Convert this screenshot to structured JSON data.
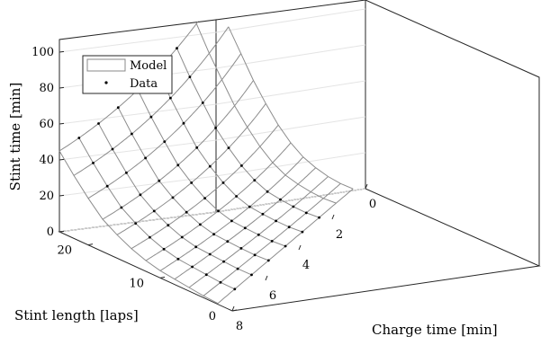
{
  "chart_data": {
    "type": "surface3d",
    "zlabel": "Stint time [min]",
    "ylabel": "Stint length [laps]",
    "xlabel": "Charge time [min]",
    "x_ticks": [
      "0",
      "2",
      "4",
      "6",
      "8"
    ],
    "y_ticks": [
      "0",
      "10",
      "20"
    ],
    "z_ticks": [
      "0",
      "20",
      "40",
      "60",
      "80",
      "100"
    ],
    "xlim": [
      0,
      8
    ],
    "ylim": [
      0,
      24
    ],
    "zlim": [
      0,
      110
    ],
    "legend": {
      "placement": "top-left",
      "entries": [
        {
          "label": "Model",
          "kind": "surface"
        },
        {
          "label": "Data",
          "kind": "markers"
        }
      ]
    },
    "surface_rows": [
      {
        "laps": 2,
        "stint_time_at_8": 0.5,
        "stint_time_at_0": 1
      },
      {
        "laps": 4,
        "stint_time_at_8": 1,
        "stint_time_at_0": 5
      },
      {
        "laps": 6,
        "stint_time_at_8": 2,
        "stint_time_at_0": 10
      },
      {
        "laps": 8,
        "stint_time_at_8": 3,
        "stint_time_at_0": 16
      },
      {
        "laps": 10,
        "stint_time_at_8": 4,
        "stint_time_at_0": 23
      },
      {
        "laps": 12,
        "stint_time_at_8": 6,
        "stint_time_at_0": 32
      },
      {
        "laps": 14,
        "stint_time_at_8": 9,
        "stint_time_at_0": 43
      },
      {
        "laps": 16,
        "stint_time_at_8": 13,
        "stint_time_at_0": 56
      },
      {
        "laps": 18,
        "stint_time_at_8": 18,
        "stint_time_at_0": 70
      },
      {
        "laps": 20,
        "stint_time_at_8": 26,
        "stint_time_at_0": 86
      },
      {
        "laps": 22,
        "stint_time_at_8": 35,
        "stint_time_at_0": 102
      },
      {
        "laps": 24,
        "stint_time_at_8": 45,
        "stint_time_at_0": 120
      }
    ],
    "data_points": {
      "charge_times": [
        7,
        6,
        5,
        4,
        3,
        2
      ],
      "laps": [
        2,
        4,
        6,
        8,
        10,
        12,
        14,
        16,
        18,
        20,
        22,
        24
      ],
      "note": "Data markers lie on the model surface at each (charge time, laps) grid node"
    }
  }
}
